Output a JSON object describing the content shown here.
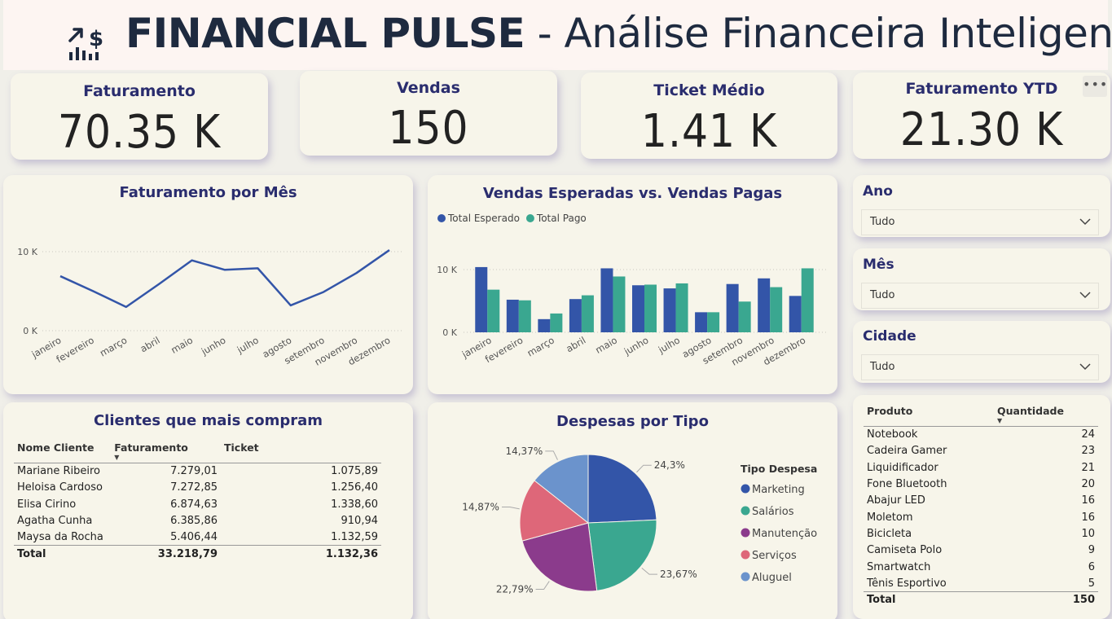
{
  "header": {
    "title_bold": "FINANCIAL PULSE",
    "title_rest": " - Análise Financeira Inteligente",
    "icon": "chart-dollar-icon"
  },
  "kpis": [
    {
      "label": "Faturamento",
      "value": "70.35 K"
    },
    {
      "label": "Vendas",
      "value": "150"
    },
    {
      "label": "Ticket Médio",
      "value": "1.41 K"
    },
    {
      "label": "Faturamento YTD",
      "value": "21.30 K"
    }
  ],
  "more_icon": "more-options-icon",
  "slicers": [
    {
      "label": "Ano",
      "value": "Tudo"
    },
    {
      "label": "Mês",
      "value": "Tudo"
    },
    {
      "label": "Cidade",
      "value": "Tudo"
    }
  ],
  "chart_data": [
    {
      "type": "line",
      "title": "Faturamento por Mês",
      "categories": [
        "janeiro",
        "fevereiro",
        "março",
        "abril",
        "maio",
        "junho",
        "julho",
        "agosto",
        "setembro",
        "novembro",
        "dezembro"
      ],
      "values": [
        6900,
        5000,
        3000,
        5900,
        8900,
        7700,
        7900,
        3200,
        4900,
        7300,
        10200
      ],
      "yticks": [
        "0 K",
        "10 K"
      ],
      "ylim": [
        0,
        10000
      ],
      "color": "#3355a8"
    },
    {
      "type": "bar",
      "title": "Vendas Esperadas vs. Vendas Pagas",
      "categories": [
        "janeiro",
        "fevereiro",
        "março",
        "abril",
        "maio",
        "junho",
        "julho",
        "agosto",
        "setembro",
        "novembro",
        "dezembro"
      ],
      "series": [
        {
          "name": "Total Esperado",
          "color": "#3355a8",
          "values": [
            10400,
            5200,
            2100,
            5300,
            10200,
            7500,
            7000,
            3200,
            7700,
            8600,
            5800
          ]
        },
        {
          "name": "Total Pago",
          "color": "#3aa790",
          "values": [
            6800,
            5100,
            3000,
            5900,
            8900,
            7600,
            7800,
            3200,
            4900,
            7200,
            10200
          ]
        }
      ],
      "yticks": [
        "0 K",
        "10 K"
      ],
      "ylim": [
        0,
        10000
      ],
      "legend": "top-left"
    },
    {
      "type": "pie",
      "title": "Despesas por Tipo",
      "legend_title": "Tipo Despesa",
      "slices": [
        {
          "name": "Marketing",
          "value": 24.3,
          "label": "24,3%",
          "color": "#3355a8"
        },
        {
          "name": "Salários",
          "value": 23.67,
          "label": "23,67%",
          "color": "#3aa790"
        },
        {
          "name": "Manutenção",
          "value": 22.79,
          "label": "22,79%",
          "color": "#8b3b8c"
        },
        {
          "name": "Serviços",
          "value": 14.87,
          "label": "14,87%",
          "color": "#de6779"
        },
        {
          "name": "Aluguel",
          "value": 14.37,
          "label": "14,37%",
          "color": "#6b93cc"
        }
      ],
      "legend": "right"
    }
  ],
  "clientes": {
    "title": "Clientes que mais compram",
    "columns": [
      "Nome Cliente",
      "Faturamento",
      "Ticket"
    ],
    "rows": [
      [
        "Mariane Ribeiro",
        "7.279,01",
        "1.075,89"
      ],
      [
        "Heloisa Cardoso",
        "7.272,85",
        "1.256,40"
      ],
      [
        "Elisa Cirino",
        "6.874,63",
        "1.338,60"
      ],
      [
        "Agatha Cunha",
        "6.385,86",
        "910,94"
      ],
      [
        "Maysa da Rocha",
        "5.406,44",
        "1.132,59"
      ]
    ],
    "total": [
      "Total",
      "33.218,79",
      "1.132,36"
    ]
  },
  "produtos": {
    "columns": [
      "Produto",
      "Quantidade"
    ],
    "rows": [
      [
        "Notebook",
        "24"
      ],
      [
        "Cadeira Gamer",
        "23"
      ],
      [
        "Liquidificador",
        "21"
      ],
      [
        "Fone Bluetooth",
        "20"
      ],
      [
        "Abajur LED",
        "16"
      ],
      [
        "Moletom",
        "16"
      ],
      [
        "Bicicleta",
        "10"
      ],
      [
        "Camiseta Polo",
        "9"
      ],
      [
        "Smartwatch",
        "6"
      ],
      [
        "Tênis Esportivo",
        "5"
      ]
    ],
    "total": [
      "Total",
      "150"
    ]
  }
}
